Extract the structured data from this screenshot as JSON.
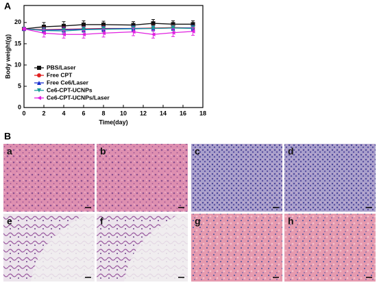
{
  "panel_labels": [
    "A",
    "B"
  ],
  "chart_data": {
    "type": "line",
    "xlabel": "Time(day)",
    "ylabel": "Body weight(g)",
    "x": [
      0,
      2,
      4,
      6,
      8,
      11,
      13,
      15,
      17
    ],
    "xlim": [
      0,
      18
    ],
    "xticks": [
      0,
      2,
      4,
      6,
      8,
      10,
      12,
      14,
      16,
      18
    ],
    "ylim": [
      0,
      24
    ],
    "yticks": [
      0,
      5,
      10,
      15,
      20
    ],
    "legend": "lower left",
    "series": [
      {
        "name": "PBS/Laser",
        "color": "#111111",
        "marker": "square",
        "values": [
          18.5,
          19.0,
          19.2,
          19.5,
          19.5,
          19.4,
          19.8,
          19.6,
          19.6
        ],
        "errors": [
          0.3,
          1.0,
          1.0,
          0.9,
          0.8,
          0.8,
          0.9,
          0.8,
          0.8
        ]
      },
      {
        "name": "Free CPT",
        "color": "#e02020",
        "marker": "circle",
        "values": [
          18.5,
          18.3,
          18.4,
          18.5,
          18.6,
          18.6,
          18.7,
          18.8,
          18.7
        ],
        "errors": [
          0.3,
          0.6,
          0.6,
          0.6,
          0.6,
          0.6,
          0.6,
          0.6,
          0.6
        ]
      },
      {
        "name": "Free Ce6/Laser",
        "color": "#1a2fd0",
        "marker": "triangle",
        "values": [
          18.5,
          18.2,
          18.3,
          18.4,
          18.5,
          18.6,
          18.6,
          18.7,
          18.7
        ],
        "errors": [
          0.3,
          0.6,
          0.6,
          0.6,
          0.6,
          0.6,
          0.6,
          0.6,
          0.6
        ]
      },
      {
        "name": "Ce6-CPT-UCNPs",
        "color": "#1a9a9a",
        "marker": "triangle-down",
        "values": [
          18.5,
          18.1,
          18.0,
          18.3,
          18.4,
          18.5,
          18.6,
          18.7,
          18.6
        ],
        "errors": [
          0.3,
          0.6,
          0.6,
          0.6,
          0.6,
          0.6,
          0.6,
          0.6,
          0.6
        ]
      },
      {
        "name": "Ce6-CPT-UCNPs/Laser",
        "color": "#e020e0",
        "marker": "triangle-left",
        "values": [
          18.5,
          17.5,
          17.2,
          17.2,
          17.5,
          17.8,
          17.2,
          17.6,
          17.9
        ],
        "errors": [
          0.3,
          0.9,
          0.9,
          0.9,
          0.9,
          0.9,
          0.9,
          0.9,
          0.9
        ]
      }
    ]
  },
  "images": [
    "a",
    "b",
    "c",
    "d",
    "e",
    "f",
    "g",
    "h"
  ]
}
